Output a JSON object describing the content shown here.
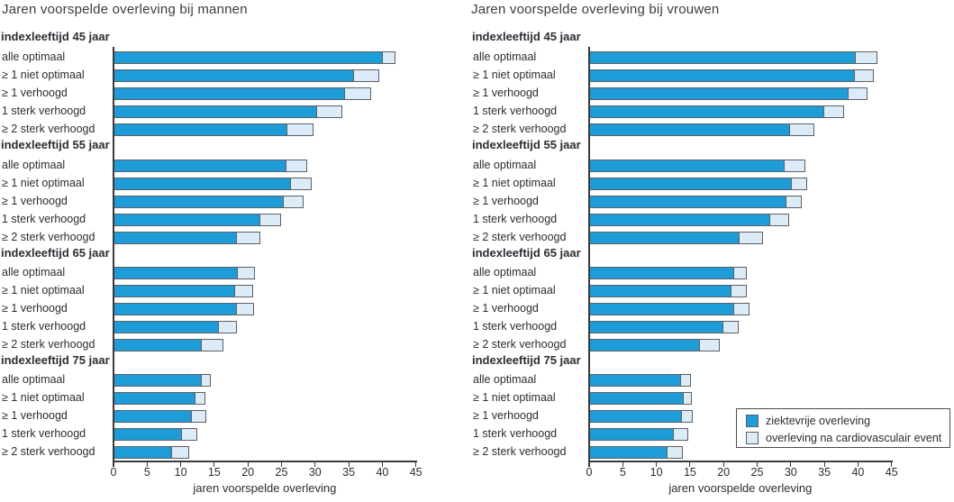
{
  "colors": {
    "disease_free_fill": "#1e9cd8",
    "post_event_fill": "#dcebf8",
    "bar_border": "#5e6064",
    "axis": "#3a3a3c",
    "text": "#2c2c33"
  },
  "legend": {
    "items": [
      {
        "label": "ziektevrije overleving",
        "color": "#1e9cd8"
      },
      {
        "label": "overleving na cardiovasculair event",
        "color": "#dcebf8"
      }
    ]
  },
  "chart_data": [
    {
      "type": "bar",
      "orientation": "horizontal",
      "stacked": true,
      "title": "Jaren voorspelde overleving bij mannen",
      "xlabel": "jaren voorspelde overleving",
      "xlim": [
        0,
        45
      ],
      "xticks": [
        0,
        5,
        10,
        15,
        20,
        25,
        30,
        35,
        40,
        45
      ],
      "series_names": [
        "ziektevrije overleving",
        "overleving na cardiovasculair event"
      ],
      "groups": [
        {
          "label": "indexleeftijd 45 jaar",
          "rows": [
            {
              "label": "alle optimaal",
              "values": [
                40.2,
                1.8
              ]
            },
            {
              "label": "≥ 1 niet optimaal",
              "values": [
                35.8,
                3.7
              ]
            },
            {
              "label": "≥ 1 verhoogd",
              "values": [
                34.5,
                3.9
              ]
            },
            {
              "label": "1 sterk verhoogd",
              "values": [
                30.3,
                3.7
              ]
            },
            {
              "label": "≥ 2 sterk verhoogd",
              "values": [
                26.0,
                3.8
              ]
            }
          ]
        },
        {
          "label": "indexleeftijd 55 jaar",
          "rows": [
            {
              "label": "alle optimaal",
              "values": [
                25.8,
                3.0
              ]
            },
            {
              "label": "≥ 1 niet optimaal",
              "values": [
                26.5,
                3.0
              ]
            },
            {
              "label": "≥ 1 verhoogd",
              "values": [
                25.4,
                2.9
              ]
            },
            {
              "label": "1 sterk verhoogd",
              "values": [
                21.9,
                3.0
              ]
            },
            {
              "label": "≥ 2 sterk verhoogd",
              "values": [
                18.4,
                3.5
              ]
            }
          ]
        },
        {
          "label": "indexleeftijd 65 jaar",
          "rows": [
            {
              "label": "alle optimaal",
              "values": [
                18.5,
                2.5
              ]
            },
            {
              "label": "≥ 1 niet optimaal",
              "values": [
                18.2,
                2.6
              ]
            },
            {
              "label": "≥ 1 verhoogd",
              "values": [
                18.4,
                2.5
              ]
            },
            {
              "label": "1 sterk verhoogd",
              "values": [
                15.8,
                2.5
              ]
            },
            {
              "label": "≥ 2 sterk verhoogd",
              "values": [
                13.2,
                3.2
              ]
            }
          ]
        },
        {
          "label": "indexleeftijd 75 jaar",
          "rows": [
            {
              "label": "alle optimaal",
              "values": [
                13.2,
                1.3
              ]
            },
            {
              "label": "≥ 1 niet optimaal",
              "values": [
                12.2,
                1.5
              ]
            },
            {
              "label": "≥ 1 verhoogd",
              "values": [
                11.7,
                2.1
              ]
            },
            {
              "label": "1 sterk verhoogd",
              "values": [
                10.2,
                2.3
              ]
            },
            {
              "label": "≥ 2 sterk verhoogd",
              "values": [
                8.8,
                2.5
              ]
            }
          ]
        }
      ]
    },
    {
      "type": "bar",
      "orientation": "horizontal",
      "stacked": true,
      "title": "Jaren voorspelde overleving bij vrouwen",
      "xlabel": "jaren voorspelde overleving",
      "xlim": [
        0,
        45
      ],
      "xticks": [
        0,
        5,
        10,
        15,
        20,
        25,
        30,
        35,
        40,
        45
      ],
      "series_names": [
        "ziektevrije overleving",
        "overleving na cardiovasculair event"
      ],
      "groups": [
        {
          "label": "indexleeftijd 45 jaar",
          "rows": [
            {
              "label": "alle optimaal",
              "values": [
                39.8,
                3.1
              ]
            },
            {
              "label": "≥ 1 niet optimaal",
              "values": [
                39.6,
                2.7
              ]
            },
            {
              "label": "≥ 1 verhoogd",
              "values": [
                38.7,
                2.7
              ]
            },
            {
              "label": "1 sterk verhoogd",
              "values": [
                35.0,
                2.9
              ]
            },
            {
              "label": "≥ 2 sterk verhoogd",
              "values": [
                30.0,
                3.5
              ]
            }
          ]
        },
        {
          "label": "indexleeftijd 55 jaar",
          "rows": [
            {
              "label": "alle optimaal",
              "values": [
                29.1,
                3.1
              ]
            },
            {
              "label": "≥ 1 niet optimaal",
              "values": [
                30.2,
                2.3
              ]
            },
            {
              "label": "≥ 1 verhoogd",
              "values": [
                29.4,
                2.2
              ]
            },
            {
              "label": "1 sterk verhoogd",
              "values": [
                27.0,
                2.7
              ]
            },
            {
              "label": "≥ 2 sterk verhoogd",
              "values": [
                22.4,
                3.5
              ]
            }
          ]
        },
        {
          "label": "indexleeftijd 65 jaar",
          "rows": [
            {
              "label": "alle optimaal",
              "values": [
                21.6,
                1.9
              ]
            },
            {
              "label": "≥ 1 niet optimaal",
              "values": [
                21.3,
                2.2
              ]
            },
            {
              "label": "≥ 1 verhoogd",
              "values": [
                21.6,
                2.3
              ]
            },
            {
              "label": "1 sterk verhoogd",
              "values": [
                20.1,
                2.2
              ]
            },
            {
              "label": "≥ 2 sterk verhoogd",
              "values": [
                16.5,
                2.9
              ]
            }
          ]
        },
        {
          "label": "indexleeftijd 75 jaar",
          "rows": [
            {
              "label": "alle optimaal",
              "values": [
                13.8,
                1.3
              ]
            },
            {
              "label": "≥ 1 niet optimaal",
              "values": [
                14.2,
                1.1
              ]
            },
            {
              "label": "≥ 1 verhoogd",
              "values": [
                13.9,
                1.5
              ]
            },
            {
              "label": "1 sterk verhoogd",
              "values": [
                12.7,
                2.0
              ]
            },
            {
              "label": "≥ 2 sterk verhoogd",
              "values": [
                11.7,
                2.2
              ]
            }
          ]
        }
      ]
    }
  ]
}
